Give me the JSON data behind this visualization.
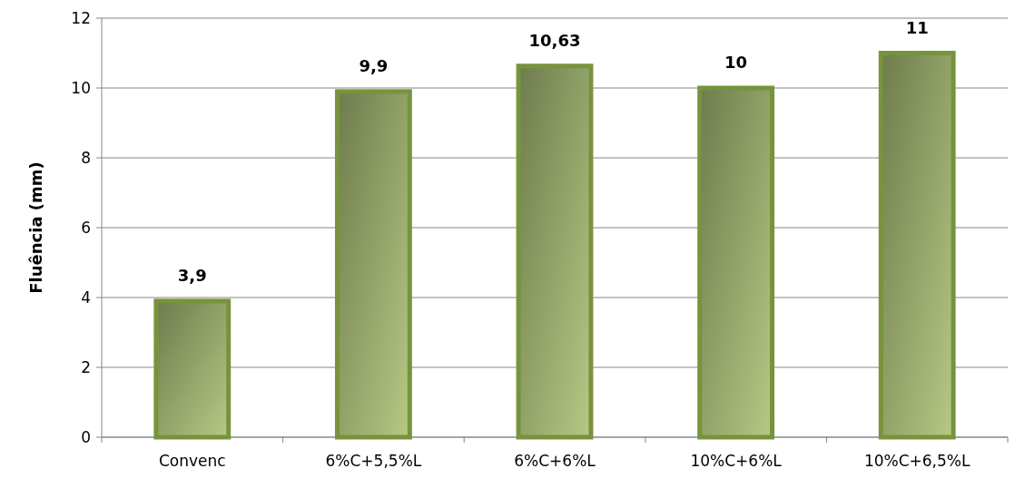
{
  "chart_data": {
    "type": "bar",
    "ylabel": "Fluência (mm)",
    "categories": [
      "Convenc",
      "6%C+5,5%L",
      "6%C+6%L",
      "10%C+6%L",
      "10%C+6,5%L"
    ],
    "values": [
      3.9,
      9.9,
      10.63,
      10,
      11
    ],
    "value_labels": [
      "3,9",
      "9,9",
      "10,63",
      "10",
      "11"
    ],
    "color": "#77933c",
    "ylim": [
      0,
      12
    ],
    "yticks": [
      0,
      2,
      4,
      6,
      8,
      10,
      12
    ],
    "grid": "y"
  }
}
